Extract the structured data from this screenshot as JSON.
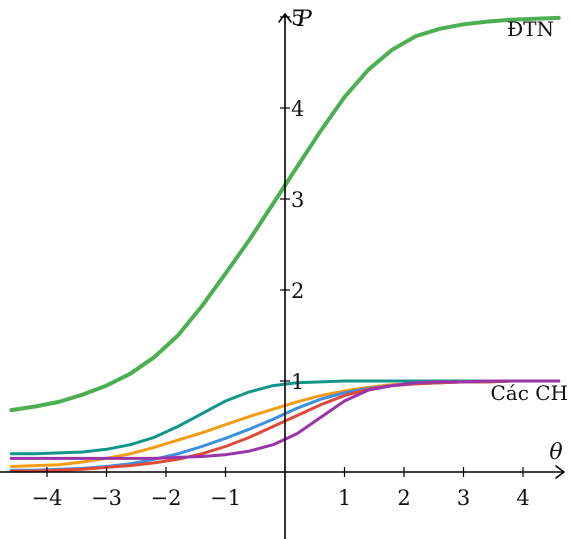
{
  "chart_data": {
    "type": "line",
    "xlabel": "θ",
    "ylabel": "P",
    "xlim": [
      -4.6,
      4.6
    ],
    "ylim": [
      0,
      5.2
    ],
    "x_ticks": [
      -4,
      -3,
      -2,
      -1,
      1,
      2,
      3,
      4
    ],
    "y_ticks": [
      1,
      2,
      3,
      4,
      5
    ],
    "x_tick_labels": [
      "−4",
      "−3",
      "−2",
      "−1",
      "1",
      "2",
      "3",
      "4"
    ],
    "y_tick_labels": [
      "1",
      "2",
      "3",
      "4",
      "5"
    ],
    "grid": false,
    "annotations": [
      {
        "text": "ĐTN",
        "x": 4.4,
        "y": 5.2
      },
      {
        "text": "Các CH",
        "x": 4.6,
        "y": 1.1
      }
    ],
    "x": [
      -4.6,
      -4.2,
      -3.8,
      -3.4,
      -3.0,
      -2.6,
      -2.2,
      -1.8,
      -1.4,
      -1.0,
      -0.6,
      -0.2,
      0.2,
      0.6,
      1.0,
      1.4,
      1.8,
      2.2,
      2.6,
      3.0,
      3.4,
      3.8,
      4.2,
      4.6
    ],
    "series": [
      {
        "color": "#4caf50",
        "width": 4,
        "values": [
          0.68,
          0.72,
          0.77,
          0.85,
          0.95,
          1.08,
          1.26,
          1.5,
          1.82,
          2.18,
          2.55,
          2.95,
          3.35,
          3.75,
          4.12,
          4.42,
          4.64,
          4.79,
          4.87,
          4.92,
          4.95,
          4.97,
          4.98,
          4.99
        ]
      },
      {
        "color": "#12968a",
        "width": 3,
        "values": [
          0.2,
          0.2,
          0.21,
          0.22,
          0.25,
          0.3,
          0.38,
          0.5,
          0.64,
          0.78,
          0.88,
          0.95,
          0.98,
          0.99,
          1.0,
          1.0,
          1.0,
          1.0,
          1.0,
          1.0,
          1.0,
          1.0,
          1.0,
          1.0
        ]
      },
      {
        "color": "#f39c12",
        "width": 3,
        "values": [
          0.06,
          0.07,
          0.08,
          0.11,
          0.15,
          0.2,
          0.27,
          0.35,
          0.43,
          0.52,
          0.61,
          0.69,
          0.77,
          0.84,
          0.89,
          0.93,
          0.96,
          0.97,
          0.98,
          0.99,
          0.99,
          1.0,
          1.0,
          1.0
        ]
      },
      {
        "color": "#3d8fe0",
        "width": 3,
        "values": [
          0.02,
          0.02,
          0.03,
          0.04,
          0.06,
          0.09,
          0.14,
          0.2,
          0.28,
          0.37,
          0.47,
          0.58,
          0.7,
          0.8,
          0.87,
          0.92,
          0.95,
          0.97,
          0.98,
          0.99,
          0.99,
          1.0,
          1.0,
          1.0
        ]
      },
      {
        "color": "#e04b38",
        "width": 3,
        "values": [
          0.01,
          0.01,
          0.02,
          0.03,
          0.05,
          0.07,
          0.1,
          0.14,
          0.2,
          0.28,
          0.38,
          0.5,
          0.62,
          0.74,
          0.84,
          0.91,
          0.95,
          0.97,
          0.98,
          0.99,
          0.99,
          1.0,
          1.0,
          1.0
        ]
      },
      {
        "color": "#9a35a8",
        "width": 3,
        "values": [
          0.15,
          0.15,
          0.15,
          0.15,
          0.15,
          0.15,
          0.15,
          0.16,
          0.17,
          0.19,
          0.23,
          0.3,
          0.42,
          0.6,
          0.78,
          0.9,
          0.95,
          0.98,
          0.99,
          0.99,
          1.0,
          1.0,
          1.0,
          1.0
        ]
      }
    ]
  }
}
